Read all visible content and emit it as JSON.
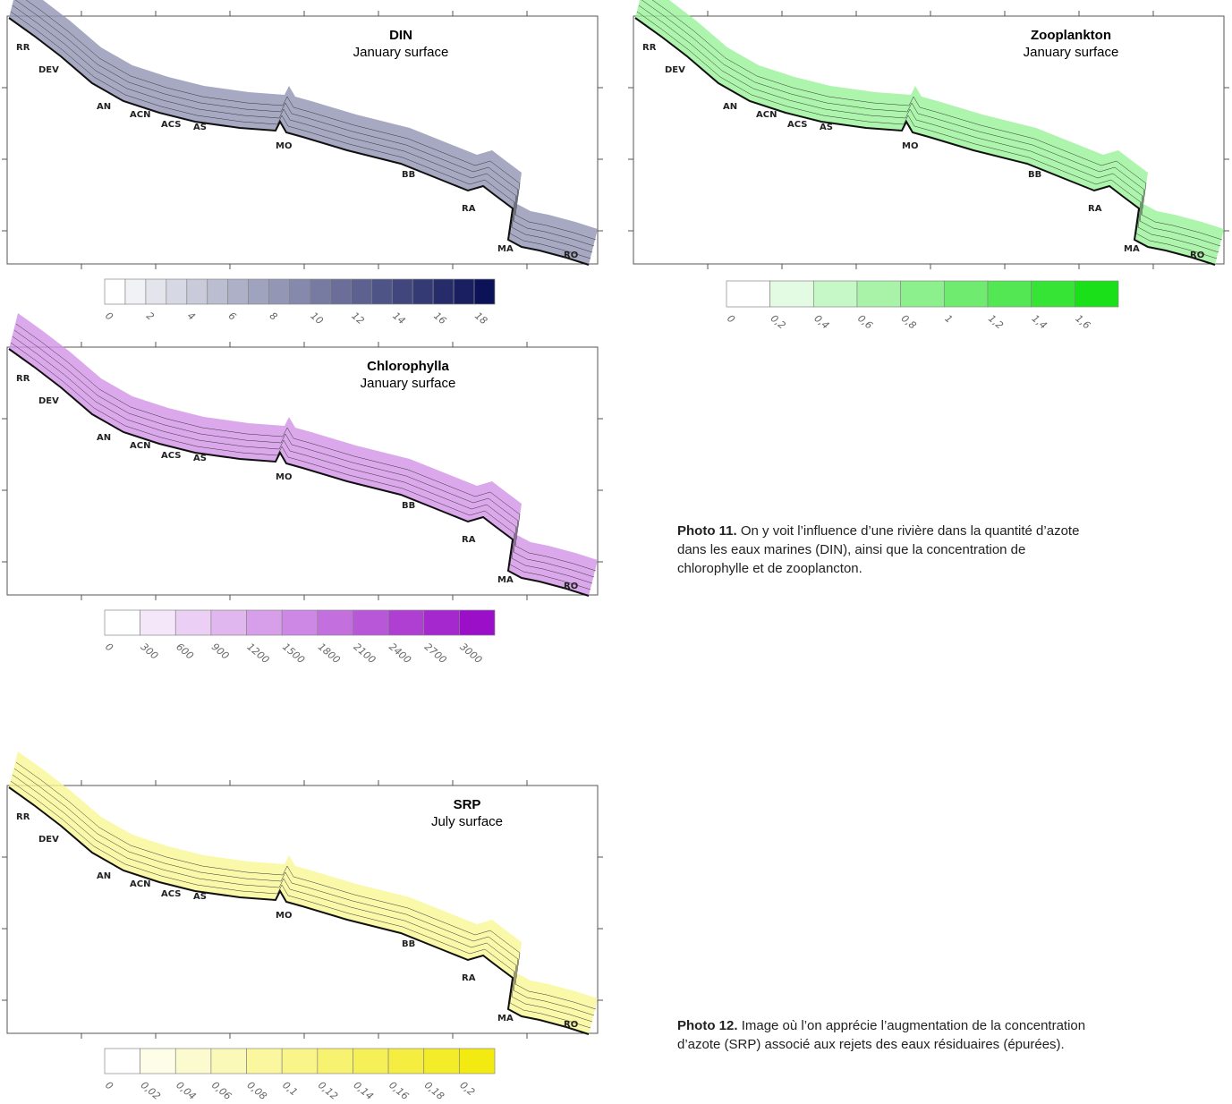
{
  "panels": [
    {
      "title": "DIN",
      "subtitle": "January surface",
      "color": "#0b1257",
      "places": [
        "RR",
        "DEV",
        "AN",
        "ACN",
        "ACS",
        "AS",
        "MO",
        "BB",
        "RA",
        "MA",
        "RO"
      ],
      "labels": [
        "0",
        "2",
        "4",
        "6",
        "8",
        "10",
        "12",
        "14",
        "16",
        "18"
      ]
    },
    {
      "title": "Zooplankton",
      "subtitle": "January surface",
      "color": "#19e019",
      "places": [
        "RR",
        "DEV",
        "AN",
        "ACN",
        "ACS",
        "AS",
        "MO",
        "BB",
        "RA",
        "MA",
        "RO"
      ],
      "labels": [
        "0",
        "0,2",
        "0,4",
        "0,6",
        "0,8",
        "1",
        "1,2",
        "1,4",
        "1,6"
      ]
    },
    {
      "title": "Chlorophylla",
      "subtitle": "January surface",
      "color": "#9b0fc8",
      "places": [
        "RR",
        "DEV",
        "AN",
        "ACN",
        "ACS",
        "AS",
        "MO",
        "BB",
        "RA",
        "MA",
        "RO"
      ],
      "labels": [
        "0",
        "300",
        "600",
        "900",
        "1200",
        "1500",
        "1800",
        "2100",
        "2400",
        "2700",
        "3000"
      ]
    },
    {
      "title": "SRP",
      "subtitle": "July surface",
      "color": "#f2ea10",
      "places": [
        "RR",
        "DEV",
        "AN",
        "ACN",
        "ACS",
        "AS",
        "MO",
        "BB",
        "RA",
        "MA",
        "RO"
      ],
      "labels": [
        "0",
        "0,02",
        "0,04",
        "0,06",
        "0,08",
        "0,1",
        "0,12",
        "0,14",
        "0,16",
        "0,18",
        "0,2"
      ]
    }
  ],
  "captions": [
    {
      "label": "Photo 11.",
      "text": "On y voit l’influence d’une rivière dans la quantité d’azote dans les eaux marines (DIN), ainsi que la concentration de chlorophylle et de zooplancton."
    },
    {
      "label": "Photo 12.",
      "text": "Image où l’on apprécie l’augmentation de la concentration d’azote (SRP) associé aux rejets des eaux résiduaires (épurées)."
    }
  ]
}
